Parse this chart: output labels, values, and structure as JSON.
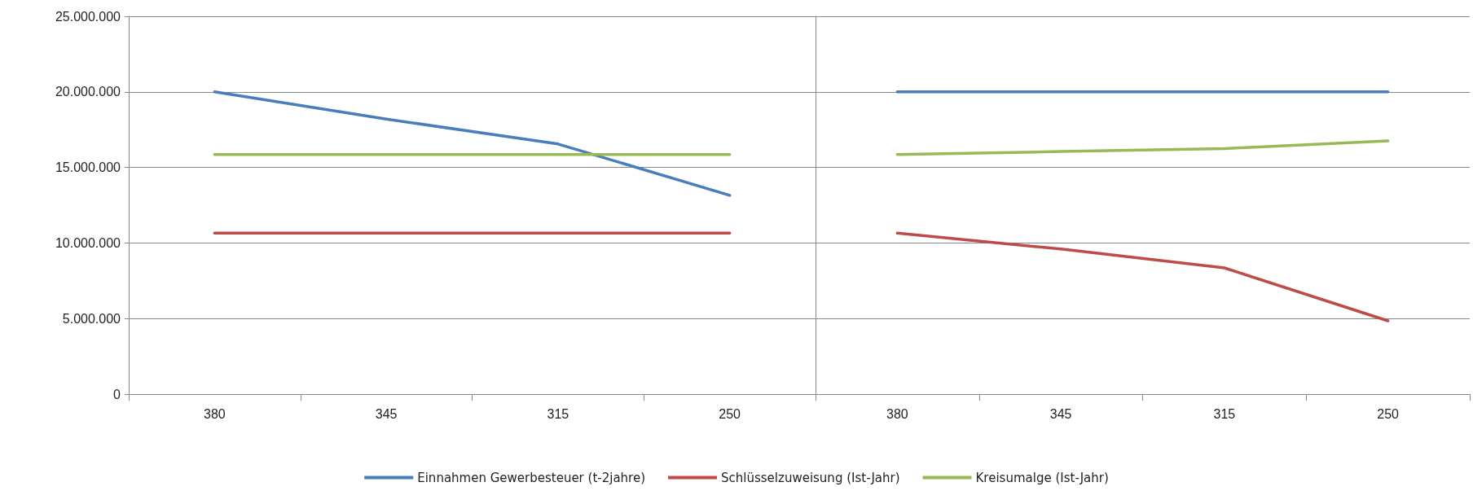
{
  "chart_data": [
    {
      "type": "line",
      "categories": [
        "380",
        "345",
        "315",
        "250"
      ],
      "ylim": [
        0,
        25000000
      ],
      "yticks": [
        {
          "value": 0,
          "label": "0"
        },
        {
          "value": 5000000,
          "label": "5.000.000"
        },
        {
          "value": 10000000,
          "label": "10.000.000"
        },
        {
          "value": 15000000,
          "label": "15.000.000"
        },
        {
          "value": 20000000,
          "label": "20.000.000"
        },
        {
          "value": 25000000,
          "label": "25.000.000"
        }
      ],
      "grid": "y",
      "legend": "bottom",
      "marker": "none",
      "series": [
        {
          "name": "Einnahmen Gewerbesteuer (t-2jahre)",
          "color": "#4a7ebb",
          "values": [
            20000000,
            18200000,
            16550000,
            13150000
          ]
        },
        {
          "name": "Schlüsselzuweisung (Ist-Jahr)",
          "color": "#be4b48",
          "values": [
            10650000,
            10650000,
            10650000,
            10650000
          ]
        },
        {
          "name": "Kreisumalge (Ist-Jahr)",
          "color": "#98b954",
          "values": [
            15850000,
            15850000,
            15850000,
            15850000
          ]
        }
      ]
    },
    {
      "type": "line",
      "categories": [
        "380",
        "345",
        "315",
        "250"
      ],
      "ylim": [
        0,
        25000000
      ],
      "yticks": [
        0,
        5000000,
        10000000,
        15000000,
        20000000,
        25000000
      ],
      "grid": "y",
      "tick_labels": "x",
      "marker": "none",
      "series": [
        {
          "color": "#4a7ebb",
          "values": [
            20000000,
            20000000,
            20000000,
            20000000
          ]
        },
        {
          "color": "#be4b48",
          "values": [
            10650000,
            9600000,
            8350000,
            4850000
          ]
        },
        {
          "color": "#98b954",
          "values": [
            15850000,
            16050000,
            16250000,
            16750000
          ]
        }
      ]
    }
  ]
}
